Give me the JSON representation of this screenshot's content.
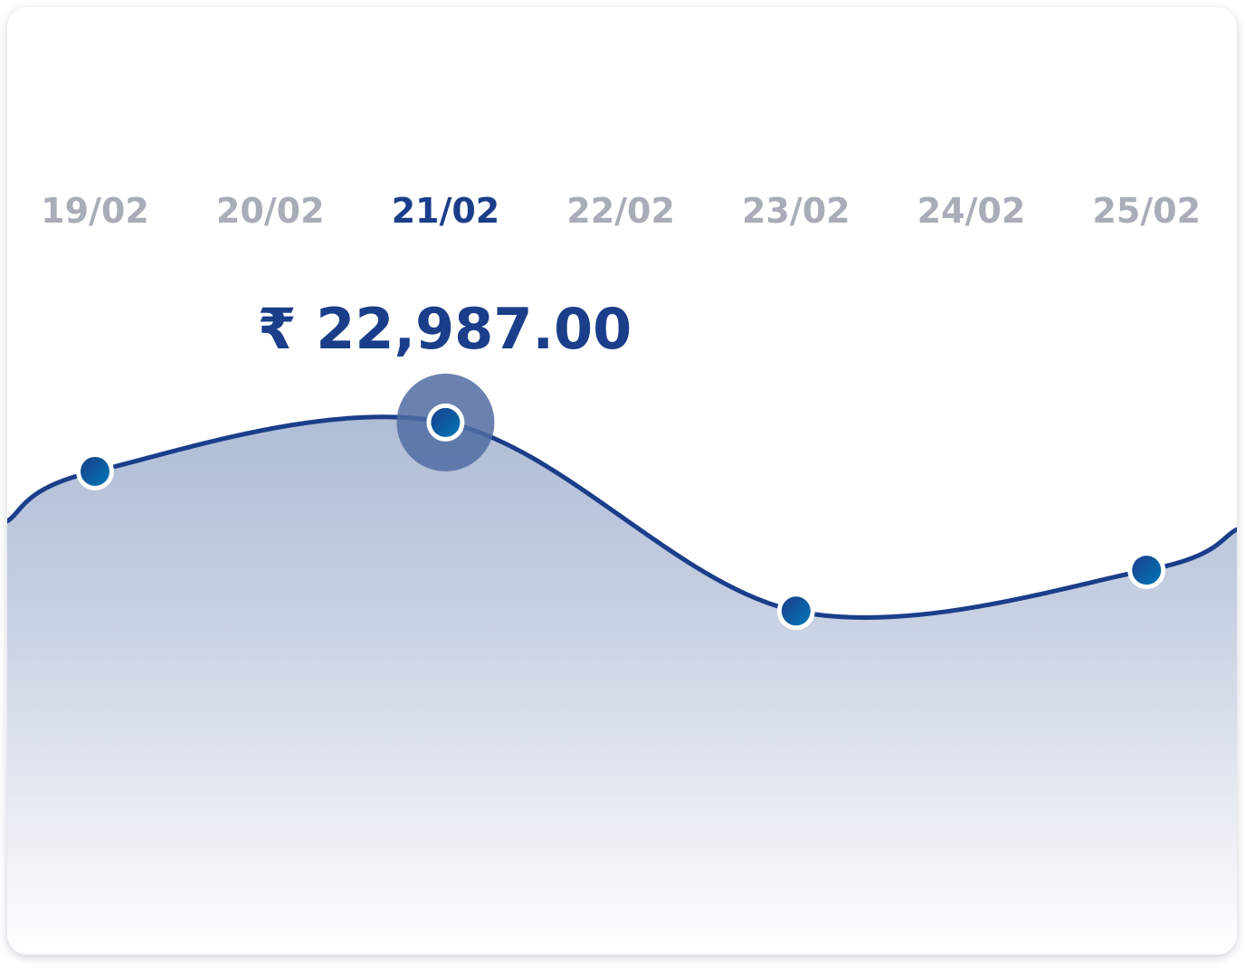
{
  "chart_data": {
    "type": "area",
    "categories": [
      "19/02",
      "20/02",
      "21/02",
      "22/02",
      "23/02",
      "24/02",
      "25/02"
    ],
    "marked_points": [
      {
        "category": "19/02",
        "value": 22700
      },
      {
        "category": "21/02",
        "value": 22987
      },
      {
        "category": "23/02",
        "value": 21880
      },
      {
        "category": "25/02",
        "value": 22120
      }
    ],
    "selected_category": "21/02",
    "selected_value_label": "₹ 22,987.00",
    "grid": "vertical",
    "legend": "none"
  },
  "colors": {
    "line": "#1a3e8a",
    "selected_label": "#1a3e8a",
    "date_label": "#a9adb7",
    "marker": "#0a6aa8",
    "halo": "#516ca3",
    "gridline": "#e6e8ec"
  }
}
